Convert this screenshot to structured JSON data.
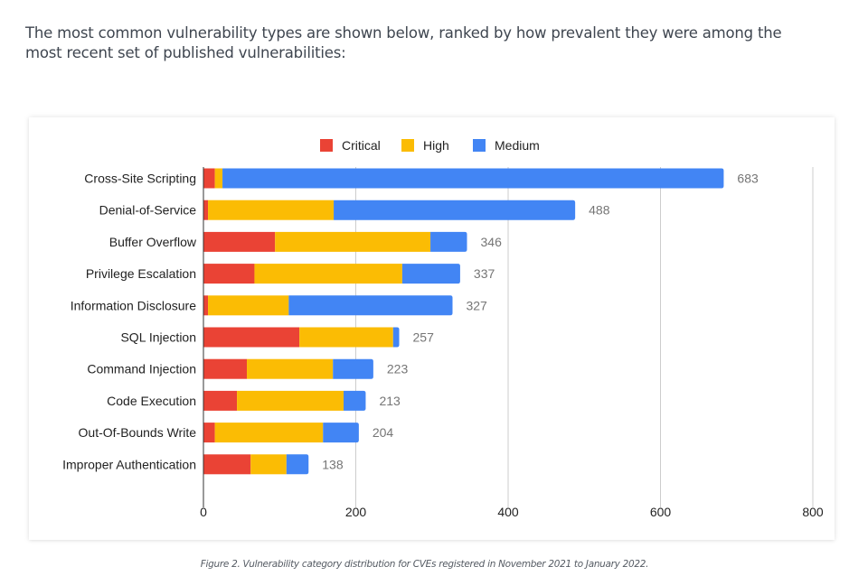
{
  "intro_text": "The most common vulnerability types are shown below, ranked by how prevalent they were among the most recent set of published vulnerabilities:",
  "caption": "Figure 2. Vulnerability category distribution for CVEs registered in November 2021 to January 2022.",
  "chart_data": {
    "type": "bar",
    "orientation": "horizontal",
    "stacked": true,
    "title": "",
    "xlabel": "",
    "ylabel": "",
    "xlim": [
      0,
      800
    ],
    "x_ticks": [
      0,
      200,
      400,
      600,
      800
    ],
    "grid": true,
    "legend_position": "top-center",
    "categories": [
      "Cross-Site Scripting",
      "Denial-of-Service",
      "Buffer Overflow",
      "Privilege Escalation",
      "Information Disclosure",
      "SQL Injection",
      "Command Injection",
      "Code Execution",
      "Out-Of-Bounds Write",
      "Improper Authentication"
    ],
    "series": [
      {
        "name": "Critical",
        "color": "#ea4335",
        "values": [
          15,
          6,
          94,
          67,
          6,
          126,
          57,
          44,
          15,
          62
        ]
      },
      {
        "name": "High",
        "color": "#fbbc04",
        "values": [
          10,
          165,
          204,
          194,
          106,
          123,
          113,
          140,
          142,
          47
        ]
      },
      {
        "name": "Medium",
        "color": "#4285f4",
        "values": [
          658,
          317,
          48,
          76,
          215,
          8,
          53,
          29,
          47,
          29
        ]
      }
    ],
    "totals": [
      683,
      488,
      346,
      337,
      327,
      257,
      223,
      213,
      204,
      138
    ]
  }
}
